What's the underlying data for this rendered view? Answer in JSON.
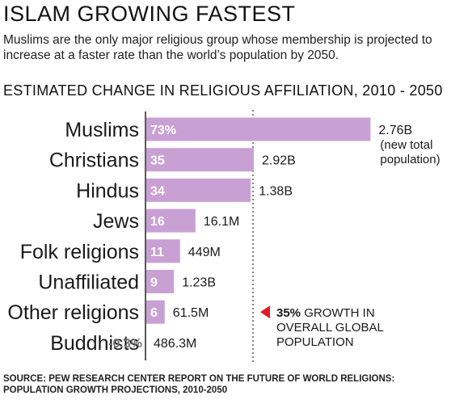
{
  "header": {
    "title": "ISLAM GROWING FASTEST",
    "subtitle": "Muslims are the only major religious group whose membership is projected to increase at a faster rate than the world’s population by 2050.",
    "section_heading": "ESTIMATED CHANGE IN RELIGIOUS AFFILIATION, 2010 - 2050"
  },
  "colors": {
    "bar": "#c9a0d4",
    "reference_marker": "#e31b23",
    "negative_label": "#777777"
  },
  "chart_data": {
    "type": "bar",
    "orientation": "horizontal",
    "title": "ESTIMATED CHANGE IN RELIGIOUS AFFILIATION, 2010 - 2050",
    "categories": [
      "Muslims",
      "Christians",
      "Hindus",
      "Jews",
      "Folk religions",
      "Unaffiliated",
      "Other religions",
      "Buddhists"
    ],
    "values": [
      73,
      35,
      34,
      16,
      11,
      9,
      6,
      -0.3
    ],
    "value_labels": [
      "73%",
      "35",
      "34",
      "16",
      "11",
      "9",
      "6",
      "-0.3%"
    ],
    "totals": [
      "2.76B",
      "2.92B",
      "1.38B",
      "16.1M",
      "449M",
      "1.23B",
      "61.5M",
      "486.3M"
    ],
    "total_note": "(new total population)",
    "reference_line": {
      "value": 35,
      "label_bold": "35%",
      "label_rest": " GROWTH IN",
      "label_lines": [
        "OVERALL GLOBAL",
        "POPULATION"
      ]
    },
    "xlim": [
      0,
      73
    ],
    "grid": false,
    "legend": "none"
  },
  "footer": {
    "source_lines": [
      "SOURCE:  PEW RESEARCH CENTER REPORT ON THE FUTURE OF WORLD RELIGIONS:",
      "POPULATION GROWTH PROJECTIONS, 2010-2050"
    ]
  }
}
